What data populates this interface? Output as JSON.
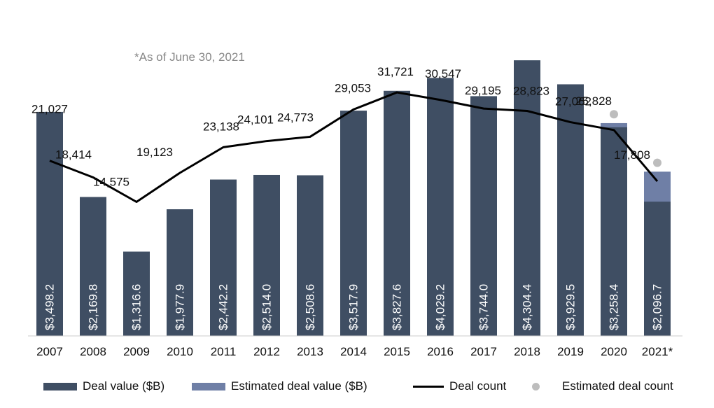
{
  "note": "*As of June 30, 2021",
  "colors": {
    "deal_value": "#3f4e63",
    "estimated_value": "#6f7fa6",
    "deal_count": "#000000",
    "estimated_count": "#bdbdbd"
  },
  "legend": {
    "deal_value": "Deal value ($B)",
    "estimated_value": "Estimated deal value ($B)",
    "deal_count": "Deal count",
    "estimated_count": "Estimated deal count"
  },
  "chart_data": {
    "type": "bar",
    "categories": [
      "2007",
      "2008",
      "2009",
      "2010",
      "2011",
      "2012",
      "2013",
      "2014",
      "2015",
      "2016",
      "2017",
      "2018",
      "2019",
      "2020",
      "2021*"
    ],
    "series": [
      {
        "name": "Deal value ($B)",
        "values": [
          3498.2,
          2169.8,
          1316.6,
          1977.9,
          2442.2,
          2514.0,
          2508.6,
          3517.9,
          3827.6,
          4029.2,
          3744.0,
          4304.4,
          3929.5,
          3258.4,
          2096.7
        ],
        "labels": [
          "$3,498.2",
          "$2,169.8",
          "$1,316.6",
          "$1,977.9",
          "$2,442.2",
          "$2,514.0",
          "$2,508.6",
          "$3,517.9",
          "$3,827.6",
          "$4,029.2",
          "$3,744.0",
          "$4,304.4",
          "$3,929.5",
          "$3,258.4",
          "$2,096.7"
        ]
      },
      {
        "name": "Estimated deal value ($B)",
        "values": [
          0,
          0,
          0,
          0,
          0,
          0,
          0,
          0,
          0,
          0,
          0,
          0,
          0,
          3323,
          2565
        ]
      },
      {
        "name": "Deal count",
        "type": "line",
        "values": [
          21027,
          18414,
          14575,
          19123,
          23138,
          24101,
          24773,
          29053,
          31721,
          30547,
          29195,
          28823,
          27062,
          25828,
          17808
        ],
        "labels": [
          "21,027",
          "18,414",
          "14,575",
          "19,123",
          "23,138",
          "24,101",
          "24,773",
          "29,053",
          "31,721",
          "30,547",
          "29,195",
          "28,823",
          "27,062",
          "25,828",
          "17,808"
        ]
      },
      {
        "name": "Estimated deal count",
        "type": "scatter",
        "values": [
          null,
          null,
          null,
          null,
          null,
          null,
          null,
          null,
          null,
          null,
          null,
          null,
          null,
          28300,
          20700
        ]
      }
    ],
    "legend_position": "bottom",
    "grid": false
  }
}
